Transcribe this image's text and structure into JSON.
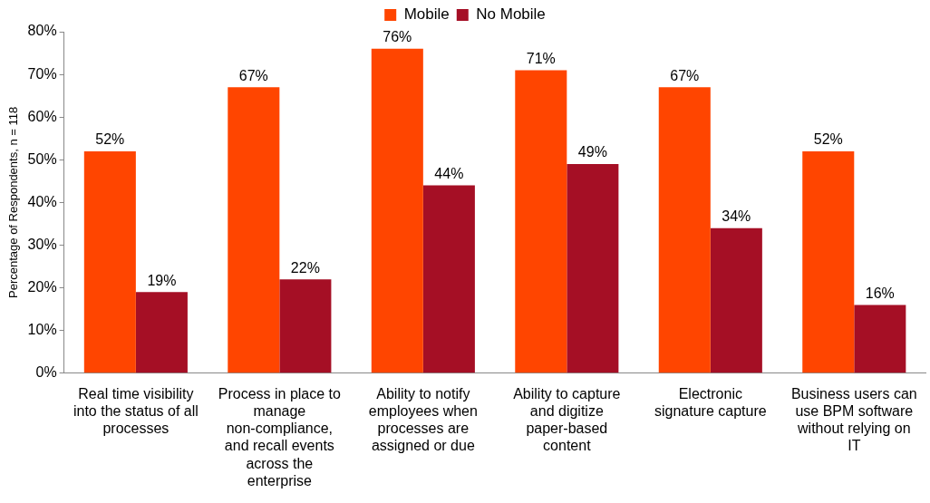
{
  "chart_data": {
    "type": "bar",
    "ylabel": "Percentage of Respondents, n = 118",
    "categories": [
      "Real time visibility into the status of all processes",
      "Process in place to manage non-compliance, and recall events across the enterprise",
      "Ability to notify employees when processes are assigned or due",
      "Ability to capture and digitize paper-based content",
      "Electronic signature capture",
      "Business users can use BPM software without relying on IT"
    ],
    "series": [
      {
        "name": "Mobile",
        "color": "#ff4500",
        "values": [
          52,
          67,
          76,
          71,
          67,
          52
        ],
        "value_labels": [
          "52%",
          "67%",
          "76%",
          "71%",
          "67%",
          "52%"
        ]
      },
      {
        "name": "No Mobile",
        "color": "#a50f25",
        "values": [
          19,
          22,
          44,
          49,
          34,
          16
        ],
        "value_labels": [
          "19%",
          "22%",
          "44%",
          "49%",
          "34%",
          "16%"
        ]
      }
    ],
    "ylim": [
      0,
      80
    ],
    "yticks": [
      {
        "value": 0,
        "label": "0%"
      },
      {
        "value": 10,
        "label": "10%"
      },
      {
        "value": 20,
        "label": "20%"
      },
      {
        "value": 30,
        "label": "30%"
      },
      {
        "value": 40,
        "label": "40%"
      },
      {
        "value": 50,
        "label": "50%"
      },
      {
        "value": 60,
        "label": "60%"
      },
      {
        "value": 70,
        "label": "70%"
      },
      {
        "value": 80,
        "label": "80%"
      }
    ],
    "grid": false,
    "legend": "top"
  }
}
